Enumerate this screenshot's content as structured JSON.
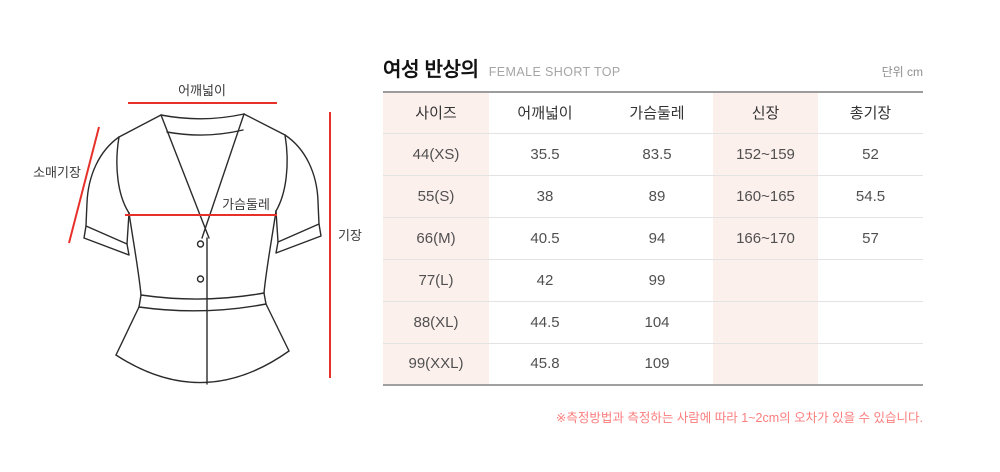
{
  "page": {
    "unit_label": "단위 cm"
  },
  "header": {
    "title": "여성 반상의",
    "subtitle": "FEMALE SHORT TOP"
  },
  "diagram": {
    "labels": {
      "shoulder": "어깨넓이",
      "sleeve": "소매기장",
      "chest": "가슴둘레",
      "length": "기장"
    },
    "colors": {
      "line_red": "#e8302a",
      "outline": "#2b2b2b"
    }
  },
  "table": {
    "columns": [
      "사이즈",
      "어깨넓이",
      "가슴둘레",
      "신장",
      "총기장"
    ],
    "rows": [
      [
        "44(XS)",
        "35.5",
        "83.5",
        "152~159",
        "52"
      ],
      [
        "55(S)",
        "38",
        "89",
        "160~165",
        "54.5"
      ],
      [
        "66(M)",
        "40.5",
        "94",
        "166~170",
        "57"
      ],
      [
        "77(L)",
        "42",
        "99",
        "",
        ""
      ],
      [
        "88(XL)",
        "44.5",
        "104",
        "",
        ""
      ],
      [
        "99(XXL)",
        "45.8",
        "109",
        "",
        ""
      ]
    ],
    "highlight_columns": [
      0,
      3
    ],
    "highlight_color": "#fcf0ed"
  },
  "footnote": "※측정방법과 측정하는 사람에 따라 1~2cm의 오차가 있을 수 있습니다.",
  "footnote_color": "#fb7e7e"
}
